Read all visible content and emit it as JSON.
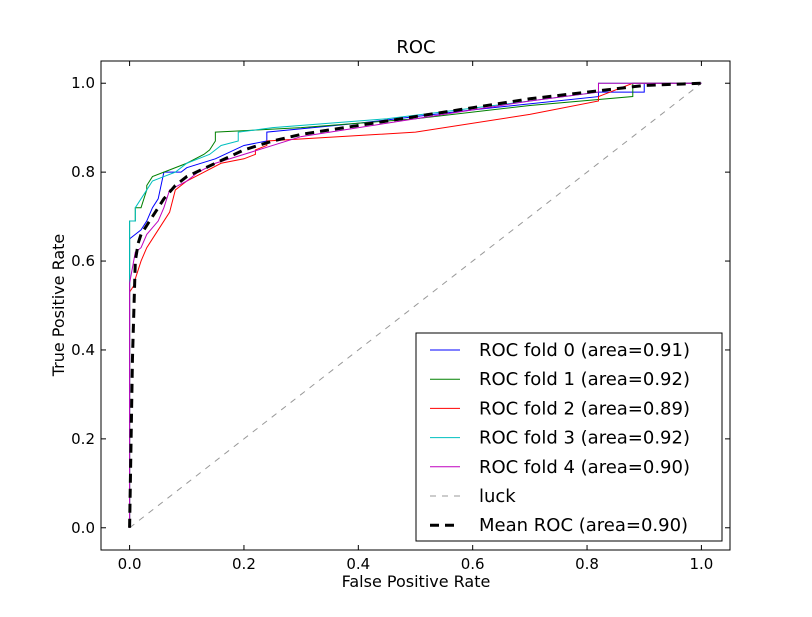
{
  "chart_data": {
    "type": "line",
    "title": "ROC",
    "xlabel": "False Positive Rate",
    "ylabel": "True Positive Rate",
    "xlim": [
      -0.05,
      1.05
    ],
    "ylim": [
      -0.05,
      1.05
    ],
    "xticks": [
      "0.0",
      "0.2",
      "0.4",
      "0.6",
      "0.8",
      "1.0"
    ],
    "yticks": [
      "0.0",
      "0.2",
      "0.4",
      "0.6",
      "0.8",
      "1.0"
    ],
    "grid": false,
    "legend_position": "lower-right",
    "series": [
      {
        "name": "ROC fold 0 (area=0.91)",
        "color": "#0000ff",
        "dash": "solid",
        "x": [
          0.0,
          0.0,
          0.0,
          0.01,
          0.02,
          0.03,
          0.04,
          0.05,
          0.06,
          0.09,
          0.1,
          0.15,
          0.2,
          0.24,
          0.24,
          0.4,
          0.6,
          0.82,
          0.82,
          0.88,
          0.88,
          0.9,
          0.9,
          1.0
        ],
        "y": [
          0.0,
          0.52,
          0.65,
          0.66,
          0.67,
          0.69,
          0.72,
          0.74,
          0.8,
          0.8,
          0.81,
          0.83,
          0.86,
          0.87,
          0.89,
          0.91,
          0.94,
          0.97,
          0.98,
          0.98,
          0.98,
          0.98,
          1.0,
          1.0
        ]
      },
      {
        "name": "ROC fold 1 (area=0.92)",
        "color": "#008000",
        "dash": "solid",
        "x": [
          0.0,
          0.0,
          0.01,
          0.01,
          0.02,
          0.03,
          0.03,
          0.04,
          0.06,
          0.1,
          0.13,
          0.14,
          0.15,
          0.15,
          0.3,
          0.5,
          0.7,
          0.88,
          0.88,
          1.0
        ],
        "y": [
          0.0,
          0.69,
          0.69,
          0.72,
          0.72,
          0.76,
          0.77,
          0.79,
          0.8,
          0.82,
          0.84,
          0.85,
          0.87,
          0.89,
          0.9,
          0.92,
          0.95,
          0.97,
          1.0,
          1.0
        ]
      },
      {
        "name": "ROC fold 2 (area=0.89)",
        "color": "#ff0000",
        "dash": "solid",
        "x": [
          0.0,
          0.0,
          0.01,
          0.01,
          0.02,
          0.03,
          0.04,
          0.05,
          0.07,
          0.08,
          0.1,
          0.13,
          0.16,
          0.2,
          0.22,
          0.22,
          0.24,
          0.24,
          0.5,
          0.7,
          0.82,
          0.82,
          0.88,
          1.0
        ],
        "y": [
          0.0,
          0.53,
          0.55,
          0.56,
          0.6,
          0.63,
          0.65,
          0.67,
          0.71,
          0.76,
          0.78,
          0.8,
          0.82,
          0.83,
          0.84,
          0.85,
          0.86,
          0.87,
          0.89,
          0.93,
          0.96,
          0.97,
          1.0,
          1.0
        ]
      },
      {
        "name": "ROC fold 3 (area=0.92)",
        "color": "#00bfbf",
        "dash": "solid",
        "x": [
          0.0,
          0.0,
          0.01,
          0.01,
          0.02,
          0.03,
          0.04,
          0.06,
          0.08,
          0.1,
          0.12,
          0.14,
          0.16,
          0.19,
          0.19,
          0.25,
          0.45,
          0.7,
          0.82,
          0.82,
          1.0
        ],
        "y": [
          0.0,
          0.69,
          0.69,
          0.72,
          0.74,
          0.76,
          0.78,
          0.79,
          0.8,
          0.82,
          0.83,
          0.84,
          0.86,
          0.87,
          0.89,
          0.9,
          0.92,
          0.96,
          0.98,
          1.0,
          1.0
        ]
      },
      {
        "name": "ROC fold 4 (area=0.90)",
        "color": "#bf00bf",
        "dash": "solid",
        "x": [
          0.0,
          0.0,
          0.01,
          0.02,
          0.03,
          0.05,
          0.06,
          0.07,
          0.1,
          0.12,
          0.15,
          0.2,
          0.3,
          0.5,
          0.7,
          0.82,
          0.82,
          0.9,
          1.0
        ],
        "y": [
          0.0,
          0.55,
          0.62,
          0.63,
          0.66,
          0.69,
          0.72,
          0.76,
          0.78,
          0.8,
          0.82,
          0.84,
          0.88,
          0.92,
          0.96,
          0.98,
          1.0,
          1.0,
          1.0
        ]
      },
      {
        "name": "luck",
        "color": "#999999",
        "dash": "dashed-thin",
        "x": [
          0.0,
          1.0
        ],
        "y": [
          0.0,
          1.0
        ]
      },
      {
        "name": "Mean ROC (area=0.90)",
        "color": "#000000",
        "dash": "dashed-thick",
        "x": [
          0.0,
          0.005,
          0.01,
          0.015,
          0.02,
          0.04,
          0.06,
          0.08,
          0.1,
          0.15,
          0.2,
          0.25,
          0.3,
          0.4,
          0.5,
          0.6,
          0.7,
          0.8,
          0.9,
          1.0
        ],
        "y": [
          0.0,
          0.38,
          0.6,
          0.64,
          0.66,
          0.7,
          0.74,
          0.77,
          0.79,
          0.82,
          0.85,
          0.87,
          0.885,
          0.905,
          0.925,
          0.945,
          0.965,
          0.98,
          0.995,
          1.0
        ]
      }
    ]
  }
}
